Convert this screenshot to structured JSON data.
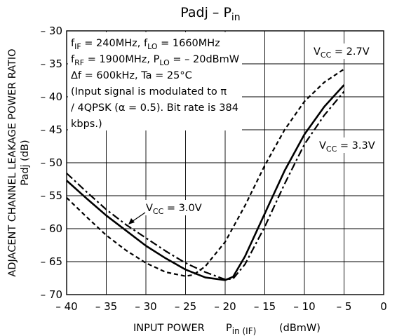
{
  "chart_data": {
    "type": "line",
    "title": "Padj – P",
    "title_sub": "in",
    "xlabel": "INPUT POWER",
    "xlabel_sym": "P",
    "xlabel_sub": "in (IF)",
    "xlabel_unit": "(dBmW)",
    "ylabel": "ADJACENT CHANNEL LEAKAGE POWER RATIO",
    "ylabel2": "Padj  (dB)",
    "xlim": [
      -40,
      0
    ],
    "ylim": [
      -70,
      -30
    ],
    "x_ticks": [
      -40,
      -35,
      -30,
      -25,
      -20,
      -15,
      -10,
      -5,
      0
    ],
    "y_ticks": [
      -30,
      -35,
      -40,
      -45,
      -50,
      -55,
      -60,
      -65,
      -70
    ],
    "grid": true,
    "conditions": [
      "f_IF = 240MHz, f_LO = 1660MHz",
      "f_RF = 1900MHz, P_LO = – 20dBmW",
      "Δf = 600kHz, Ta = 25°C",
      "(Input signal is modulated to π",
      "/ 4QPSK (α = 0.5). Bit rate is 384",
      "kbps.)"
    ],
    "series": [
      {
        "name": "V_CC = 2.7V",
        "line_style": "dashed",
        "x": [
          -40,
          -37.5,
          -35,
          -32.5,
          -30,
          -27.5,
          -25,
          -24,
          -22.5,
          -20,
          -17.5,
          -15,
          -12.5,
          -10,
          -7.5,
          -5
        ],
        "y": [
          -55.3,
          -58.2,
          -61,
          -63.3,
          -65.2,
          -66.6,
          -67.2,
          -67,
          -65.7,
          -62,
          -56.5,
          -50.4,
          -45,
          -40.7,
          -37.8,
          -35.8
        ]
      },
      {
        "name": "V_CC = 3.0V",
        "line_style": "solid",
        "x": [
          -40,
          -37.5,
          -35,
          -32.5,
          -30,
          -27.5,
          -25,
          -22.5,
          -20,
          -19,
          -17.5,
          -15,
          -12.5,
          -10,
          -7.5,
          -5
        ],
        "y": [
          -52.7,
          -55.4,
          -58,
          -60.3,
          -62.6,
          -64.5,
          -66.2,
          -67.4,
          -67.8,
          -67.3,
          -64.2,
          -57.7,
          -51.2,
          -45.7,
          -41.5,
          -38.2
        ]
      },
      {
        "name": "V_CC = 3.3V",
        "line_style": "dashdot",
        "x": [
          -40,
          -37.5,
          -35,
          -32.5,
          -30,
          -27.5,
          -25,
          -22.5,
          -20,
          -19,
          -17.5,
          -15,
          -12.5,
          -10,
          -7.5,
          -5
        ],
        "y": [
          -51.6,
          -54.4,
          -57.1,
          -59.4,
          -61.4,
          -63.4,
          -65.2,
          -66.6,
          -67.7,
          -67.6,
          -65.4,
          -59.7,
          -53.2,
          -47.2,
          -42.8,
          -39.2
        ]
      }
    ],
    "annotations": [
      {
        "sym": "V",
        "sub": "CC",
        "text": " = 2.7V",
        "series": "V_CC = 2.7V"
      },
      {
        "sym": "V",
        "sub": "CC",
        "text": " = 3.3V",
        "series": "V_CC = 3.3V"
      },
      {
        "sym": "V",
        "sub": "CC",
        "text": " = 3.0V",
        "series": "V_CC = 3.0V"
      }
    ]
  }
}
